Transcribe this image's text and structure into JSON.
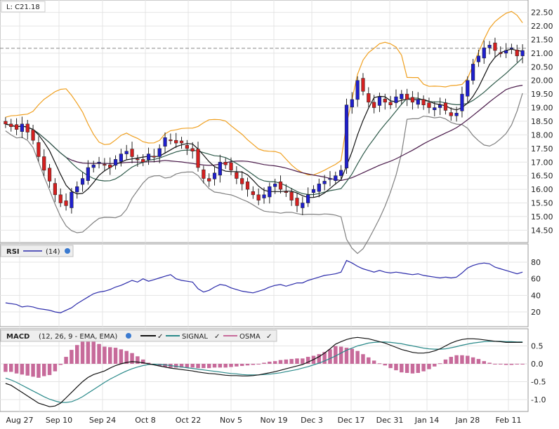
{
  "last_price_label": "L: C21.18",
  "price_axis_ticks": [
    "22.50",
    "22.00",
    "21.50",
    "21.00",
    "20.50",
    "20.00",
    "19.50",
    "19.00",
    "18.50",
    "18.00",
    "17.50",
    "17.00",
    "16.50",
    "16.00",
    "15.50",
    "15.00",
    "14.50"
  ],
  "date_labels": [
    "Aug 27",
    "Sep 10",
    "Sep 24",
    "Oct 8",
    "Oct 22",
    "Nov 5",
    "Nov 19",
    "Dec 3",
    "Dec 17",
    "Dec 31",
    "Jan 14",
    "Jan 28",
    "Feb 11"
  ],
  "rsi": {
    "title": "RSI",
    "params": "(14)",
    "ticks": [
      "80",
      "60",
      "40",
      "20"
    ]
  },
  "macd": {
    "title": "MACD",
    "params": "(12, 26, 9 - EMA, EMA)",
    "signal_label": "SIGNAL",
    "osma_label": "OSMA",
    "ticks": [
      "0.5",
      "0.0",
      "-0.5",
      "-1.0"
    ]
  },
  "colors": {
    "up": "#1f1fcc",
    "down": "#d42020",
    "upper_band": "#f0a020",
    "lower_band": "#808080",
    "ma_short": "#111111",
    "ma_mid": "#2e5a4a",
    "ma_long": "#4a1a4a",
    "rsi": "#2a2aaa",
    "macd": "#111111",
    "signal": "#2a8a8a",
    "osma": "#c76a9a"
  },
  "chart_data": {
    "type": "candlestick",
    "x_range": [
      "Aug 20",
      "Feb 14"
    ],
    "price_range": [
      14.2,
      22.8
    ],
    "last_price": 21.18,
    "closes": [
      18.4,
      18.3,
      18.2,
      18.4,
      18.1,
      17.8,
      17.2,
      16.7,
      16.3,
      15.8,
      15.5,
      15.4,
      15.9,
      16.1,
      16.4,
      16.8,
      16.9,
      17.0,
      16.9,
      16.8,
      17.1,
      17.3,
      17.4,
      17.2,
      17.1,
      17.0,
      17.3,
      17.2,
      17.5,
      17.9,
      17.8,
      17.7,
      17.7,
      17.5,
      17.4,
      16.8,
      16.4,
      16.3,
      16.6,
      17.0,
      16.9,
      16.7,
      16.4,
      16.2,
      16.0,
      15.8,
      15.6,
      15.8,
      16.1,
      16.2,
      16.0,
      15.9,
      15.6,
      15.4,
      15.5,
      15.8,
      16.0,
      16.2,
      16.3,
      16.4,
      16.5,
      16.7,
      19.1,
      19.3,
      20.0,
      19.6,
      19.2,
      19.0,
      19.4,
      19.2,
      19.1,
      19.4,
      19.5,
      19.3,
      19.2,
      19.3,
      19.1,
      19.0,
      19.0,
      19.1,
      18.9,
      18.7,
      18.8,
      19.5,
      20.0,
      20.6,
      20.9,
      21.2,
      21.3,
      21.1,
      21.0,
      21.1,
      21.2,
      20.9,
      21.1
    ],
    "rsi_range": [
      0,
      100
    ],
    "rsi_values": [
      31,
      30,
      29,
      26,
      27,
      26,
      24,
      23,
      22,
      20,
      19,
      22,
      25,
      30,
      34,
      38,
      42,
      44,
      45,
      47,
      50,
      52,
      55,
      58,
      56,
      60,
      57,
      59,
      61,
      63,
      65,
      60,
      58,
      57,
      56,
      48,
      44,
      46,
      50,
      53,
      52,
      49,
      47,
      45,
      44,
      43,
      45,
      47,
      50,
      52,
      53,
      51,
      53,
      55,
      55,
      58,
      60,
      62,
      64,
      65,
      66,
      68,
      82,
      79,
      75,
      72,
      70,
      68,
      70,
      68,
      67,
      68,
      67,
      66,
      65,
      66,
      64,
      63,
      62,
      61,
      62,
      61,
      62,
      67,
      73,
      76,
      78,
      79,
      78,
      74,
      72,
      70,
      68,
      66,
      68
    ],
    "macd_range": [
      -1.2,
      0.8
    ],
    "macd_values": [
      -0.55,
      -0.6,
      -0.7,
      -0.8,
      -0.9,
      -1.0,
      -1.1,
      -1.15,
      -1.2,
      -1.18,
      -1.1,
      -0.95,
      -0.8,
      -0.65,
      -0.5,
      -0.38,
      -0.3,
      -0.25,
      -0.2,
      -0.12,
      -0.05,
      0.0,
      0.04,
      0.06,
      0.05,
      0.03,
      0.0,
      -0.03,
      -0.06,
      -0.09,
      -0.12,
      -0.14,
      -0.16,
      -0.18,
      -0.2,
      -0.23,
      -0.25,
      -0.27,
      -0.28,
      -0.3,
      -0.32,
      -0.33,
      -0.33,
      -0.34,
      -0.34,
      -0.33,
      -0.31,
      -0.28,
      -0.25,
      -0.22,
      -0.18,
      -0.14,
      -0.1,
      -0.06,
      -0.02,
      0.05,
      0.12,
      0.2,
      0.3,
      0.42,
      0.55,
      0.62,
      0.68,
      0.72,
      0.74,
      0.72,
      0.7,
      0.66,
      0.62,
      0.58,
      0.52,
      0.46,
      0.4,
      0.36,
      0.32,
      0.3,
      0.3,
      0.32,
      0.36,
      0.42,
      0.5,
      0.58,
      0.64,
      0.68,
      0.7,
      0.7,
      0.69,
      0.67,
      0.65,
      0.63,
      0.62,
      0.6,
      0.6,
      0.6,
      0.6
    ],
    "signal_values": [
      -0.4,
      -0.45,
      -0.52,
      -0.6,
      -0.68,
      -0.76,
      -0.84,
      -0.92,
      -0.99,
      -1.04,
      -1.08,
      -1.08,
      -1.06,
      -1.0,
      -0.92,
      -0.82,
      -0.72,
      -0.62,
      -0.52,
      -0.43,
      -0.35,
      -0.27,
      -0.2,
      -0.14,
      -0.09,
      -0.05,
      -0.02,
      -0.01,
      -0.02,
      -0.03,
      -0.05,
      -0.07,
      -0.09,
      -0.11,
      -0.13,
      -0.15,
      -0.17,
      -0.19,
      -0.21,
      -0.23,
      -0.25,
      -0.27,
      -0.28,
      -0.3,
      -0.31,
      -0.31,
      -0.31,
      -0.3,
      -0.29,
      -0.27,
      -0.25,
      -0.22,
      -0.19,
      -0.16,
      -0.12,
      -0.08,
      -0.03,
      0.02,
      0.08,
      0.15,
      0.22,
      0.3,
      0.38,
      0.44,
      0.5,
      0.54,
      0.58,
      0.6,
      0.61,
      0.61,
      0.6,
      0.58,
      0.56,
      0.53,
      0.5,
      0.47,
      0.44,
      0.42,
      0.41,
      0.41,
      0.42,
      0.45,
      0.48,
      0.52,
      0.55,
      0.58,
      0.6,
      0.62,
      0.63,
      0.63,
      0.63,
      0.62,
      0.62,
      0.61,
      0.61
    ]
  }
}
